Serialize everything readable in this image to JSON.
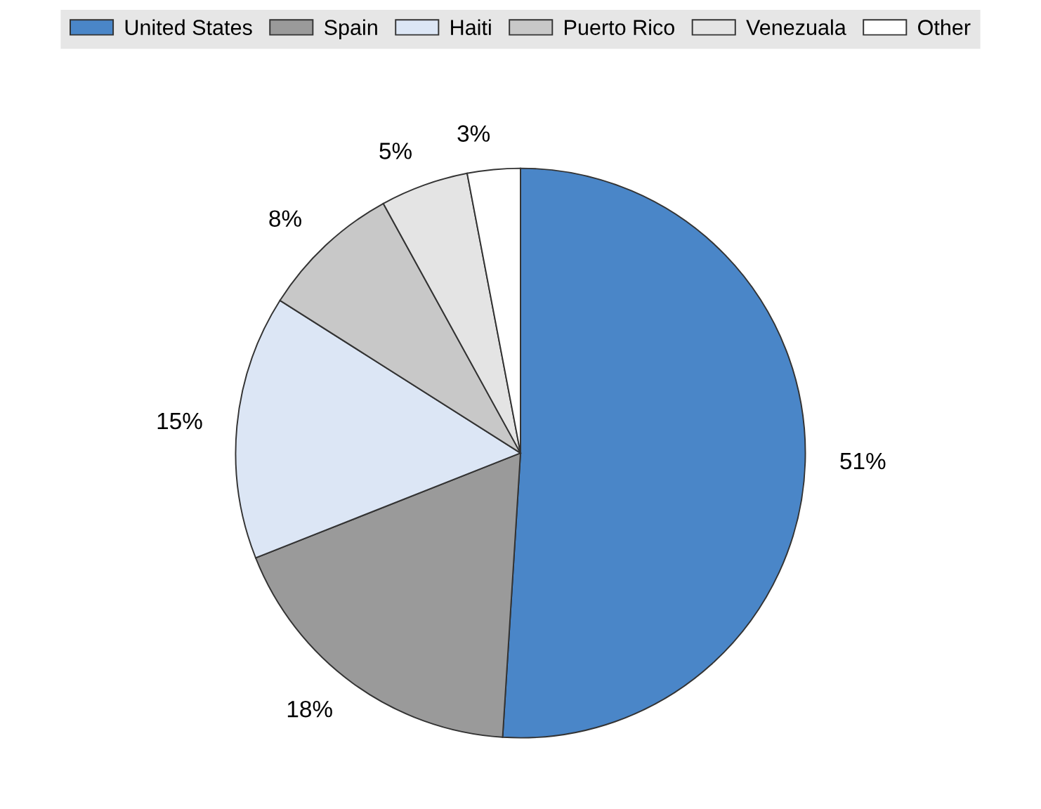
{
  "chart_data": {
    "type": "pie",
    "categories": [
      "United States",
      "Spain",
      "Haiti",
      "Puerto Rico",
      "Venezuala",
      "Other"
    ],
    "values": [
      51,
      18,
      15,
      8,
      5,
      3
    ],
    "colors": [
      "#4a86c8",
      "#9a9a9a",
      "#dce6f5",
      "#c8c8c8",
      "#e4e4e4",
      "#ffffff"
    ],
    "value_labels": [
      "51%",
      "18%",
      "15%",
      "8%",
      "5%",
      "3%"
    ],
    "legend": "top"
  }
}
